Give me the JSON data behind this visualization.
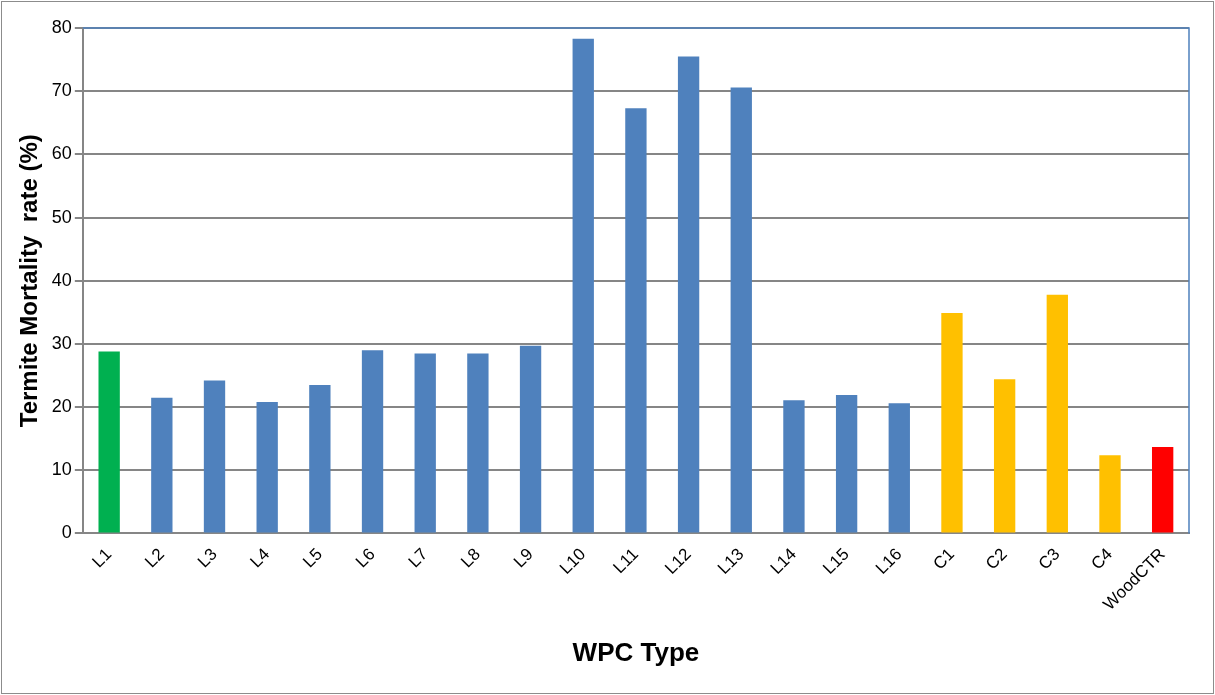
{
  "chart_data": {
    "type": "bar",
    "xlabel": "WPC Type",
    "ylabel": "Termite Mortality  rate (%)",
    "categories": [
      "L1",
      "L2",
      "L3",
      "L4",
      "L5",
      "L6",
      "L7",
      "L8",
      "L9",
      "L10",
      "L11",
      "L12",
      "L13",
      "L14",
      "L15",
      "L16",
      "C1",
      "C2",
      "C3",
      "C4",
      "WoodCTR"
    ],
    "values": [
      28.8,
      21.5,
      24.2,
      20.8,
      23.5,
      29.0,
      28.5,
      28.5,
      29.7,
      78.3,
      67.3,
      75.5,
      70.6,
      21.1,
      21.9,
      20.6,
      34.9,
      24.4,
      37.8,
      12.4,
      13.7
    ],
    "colors": [
      "#00b050",
      "#4f81bd",
      "#4f81bd",
      "#4f81bd",
      "#4f81bd",
      "#4f81bd",
      "#4f81bd",
      "#4f81bd",
      "#4f81bd",
      "#4f81bd",
      "#4f81bd",
      "#4f81bd",
      "#4f81bd",
      "#4f81bd",
      "#4f81bd",
      "#4f81bd",
      "#ffc000",
      "#ffc000",
      "#ffc000",
      "#ffc000",
      "#ff0000"
    ],
    "ylim": [
      0,
      80
    ],
    "yticks": [
      0,
      10,
      20,
      30,
      40,
      50,
      60,
      70,
      80
    ],
    "grid": "y",
    "legend": false
  }
}
